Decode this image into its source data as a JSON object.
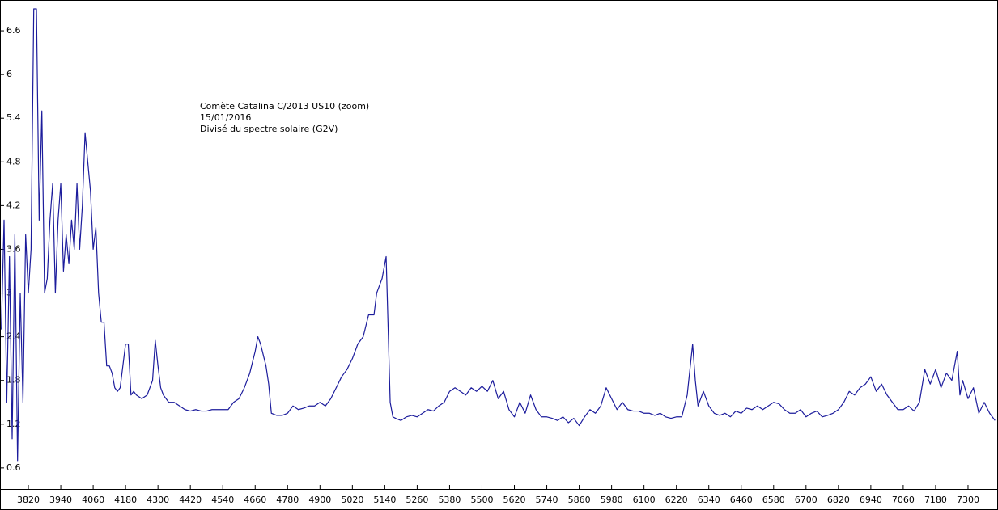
{
  "chart_data": {
    "type": "line",
    "annotations": [
      "Comète Catalina C/2013 US10 (zoom)",
      "15/01/2016",
      "Divisé du spectre solaire (G2V)"
    ],
    "color": "#1c1c9c",
    "xlim": [
      3715,
      7402
    ],
    "ylim": [
      0.31,
      7.0
    ],
    "xticks": [
      3820,
      3940,
      4060,
      4180,
      4300,
      4420,
      4540,
      4660,
      4780,
      4900,
      5020,
      5140,
      5260,
      5380,
      5500,
      5620,
      5740,
      5860,
      5980,
      6100,
      6220,
      6340,
      6460,
      6580,
      6700,
      6820,
      6940,
      7060,
      7180,
      7300
    ],
    "yticks": [
      0.6,
      1.2,
      1.8,
      2.4,
      3,
      3.6,
      4.2,
      4.8,
      5.4,
      6,
      6.6
    ],
    "x": [
      3720,
      3730,
      3740,
      3750,
      3760,
      3770,
      3780,
      3790,
      3800,
      3810,
      3820,
      3830,
      3840,
      3850,
      3860,
      3870,
      3880,
      3890,
      3900,
      3910,
      3920,
      3930,
      3940,
      3950,
      3960,
      3970,
      3980,
      3990,
      4000,
      4010,
      4020,
      4030,
      4040,
      4050,
      4060,
      4070,
      4080,
      4090,
      4100,
      4110,
      4120,
      4130,
      4140,
      4150,
      4160,
      4170,
      4180,
      4190,
      4200,
      4210,
      4220,
      4240,
      4260,
      4280,
      4290,
      4300,
      4310,
      4320,
      4340,
      4360,
      4380,
      4400,
      4420,
      4440,
      4460,
      4480,
      4500,
      4520,
      4540,
      4560,
      4580,
      4600,
      4620,
      4640,
      4660,
      4670,
      4680,
      4700,
      4710,
      4720,
      4740,
      4760,
      4780,
      4800,
      4820,
      4840,
      4860,
      4880,
      4900,
      4920,
      4940,
      4960,
      4980,
      5000,
      5020,
      5040,
      5060,
      5080,
      5100,
      5110,
      5130,
      5145,
      5160,
      5170,
      5180,
      5200,
      5220,
      5240,
      5260,
      5280,
      5300,
      5320,
      5340,
      5360,
      5380,
      5400,
      5420,
      5440,
      5460,
      5480,
      5500,
      5520,
      5540,
      5560,
      5580,
      5600,
      5620,
      5640,
      5660,
      5680,
      5700,
      5720,
      5740,
      5760,
      5780,
      5800,
      5820,
      5840,
      5860,
      5880,
      5900,
      5920,
      5940,
      5960,
      5980,
      6000,
      6020,
      6040,
      6060,
      6080,
      6100,
      6120,
      6140,
      6160,
      6180,
      6200,
      6220,
      6240,
      6260,
      6280,
      6290,
      6300,
      6320,
      6340,
      6360,
      6380,
      6400,
      6420,
      6440,
      6460,
      6480,
      6500,
      6520,
      6540,
      6560,
      6580,
      6600,
      6620,
      6640,
      6660,
      6680,
      6700,
      6720,
      6740,
      6760,
      6780,
      6800,
      6820,
      6840,
      6860,
      6880,
      6900,
      6920,
      6940,
      6960,
      6980,
      7000,
      7020,
      7040,
      7060,
      7080,
      7100,
      7120,
      7140,
      7160,
      7180,
      7200,
      7220,
      7240,
      7260,
      7270,
      7280,
      7300,
      7320,
      7340,
      7360,
      7380,
      7400
    ],
    "values": [
      2.5,
      4.0,
      1.5,
      3.5,
      1.0,
      3.8,
      0.7,
      3.0,
      1.5,
      3.8,
      3.0,
      3.6,
      6.9,
      6.9,
      4.0,
      5.5,
      3.0,
      3.2,
      4.0,
      4.5,
      3.0,
      4.0,
      4.5,
      3.3,
      3.8,
      3.4,
      4.0,
      3.6,
      4.5,
      3.6,
      4.2,
      5.2,
      4.8,
      4.4,
      3.6,
      3.9,
      3.0,
      2.6,
      2.6,
      2.0,
      2.0,
      1.9,
      1.7,
      1.65,
      1.7,
      2.0,
      2.3,
      2.3,
      1.6,
      1.65,
      1.6,
      1.55,
      1.6,
      1.8,
      2.35,
      2.0,
      1.7,
      1.6,
      1.5,
      1.5,
      1.45,
      1.4,
      1.38,
      1.4,
      1.38,
      1.38,
      1.4,
      1.4,
      1.4,
      1.4,
      1.5,
      1.55,
      1.7,
      1.9,
      2.2,
      2.4,
      2.3,
      2.0,
      1.75,
      1.35,
      1.32,
      1.32,
      1.35,
      1.45,
      1.4,
      1.42,
      1.45,
      1.45,
      1.5,
      1.45,
      1.55,
      1.7,
      1.85,
      1.95,
      2.1,
      2.3,
      2.4,
      2.7,
      2.7,
      3.0,
      3.2,
      3.5,
      1.5,
      1.3,
      1.28,
      1.25,
      1.3,
      1.32,
      1.3,
      1.35,
      1.4,
      1.38,
      1.45,
      1.5,
      1.65,
      1.7,
      1.65,
      1.6,
      1.7,
      1.65,
      1.72,
      1.65,
      1.8,
      1.55,
      1.65,
      1.4,
      1.3,
      1.5,
      1.35,
      1.6,
      1.4,
      1.3,
      1.3,
      1.28,
      1.25,
      1.3,
      1.22,
      1.28,
      1.18,
      1.3,
      1.4,
      1.35,
      1.45,
      1.7,
      1.55,
      1.4,
      1.5,
      1.4,
      1.38,
      1.38,
      1.35,
      1.35,
      1.32,
      1.35,
      1.3,
      1.28,
      1.3,
      1.3,
      1.6,
      2.3,
      1.8,
      1.45,
      1.65,
      1.45,
      1.35,
      1.32,
      1.35,
      1.3,
      1.38,
      1.35,
      1.42,
      1.4,
      1.45,
      1.4,
      1.45,
      1.5,
      1.48,
      1.4,
      1.35,
      1.35,
      1.4,
      1.3,
      1.35,
      1.38,
      1.3,
      1.32,
      1.35,
      1.4,
      1.5,
      1.65,
      1.6,
      1.7,
      1.75,
      1.85,
      1.65,
      1.75,
      1.6,
      1.5,
      1.4,
      1.4,
      1.45,
      1.38,
      1.5,
      1.95,
      1.75,
      1.95,
      1.7,
      1.9,
      1.8,
      2.2,
      1.6,
      1.8,
      1.55,
      1.7,
      1.35,
      1.5,
      1.35,
      1.25
    ]
  }
}
